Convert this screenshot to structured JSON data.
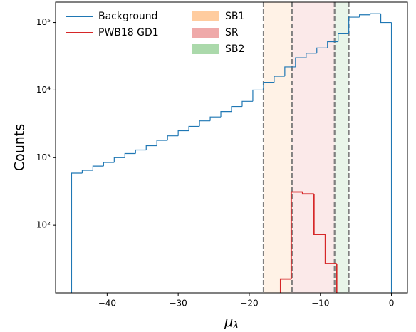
{
  "chart_data": {
    "type": "histogram",
    "xlabel": "μ",
    "xlabel_sub": "λ",
    "ylabel": "Counts",
    "xlim": [
      -47.25,
      2.25
    ],
    "ylim": [
      10,
      200000
    ],
    "log_y": true,
    "xticks": [
      {
        "value": -40,
        "label": "−40"
      },
      {
        "value": -30,
        "label": "−30"
      },
      {
        "value": -20,
        "label": "−20"
      },
      {
        "value": -10,
        "label": "−10"
      },
      0
    ],
    "yticks": [
      {
        "value": 100,
        "label": "10²"
      },
      {
        "value": 1000,
        "label": "10³"
      },
      {
        "value": 10000,
        "label": "10⁴"
      },
      {
        "value": 100000,
        "label": "10⁵"
      }
    ],
    "series": [
      {
        "name": "Background",
        "color": "#1f77b4",
        "bins": [
          -45,
          -43.5,
          -42,
          -40.5,
          -39,
          -37.5,
          -36,
          -34.5,
          -33,
          -31.5,
          -30,
          -28.5,
          -27,
          -25.5,
          -24,
          -22.5,
          -21,
          -19.5,
          -18,
          -16.5,
          -15,
          -13.5,
          -12,
          -10.5,
          -9,
          -7.5,
          -6,
          -4.5,
          -3,
          -1.5,
          0
        ],
        "values": [
          590,
          650,
          750,
          850,
          1000,
          1150,
          1300,
          1500,
          1800,
          2100,
          2500,
          2900,
          3500,
          4000,
          4800,
          5700,
          6800,
          10000,
          13000,
          16000,
          22000,
          30000,
          35000,
          42000,
          52000,
          68000,
          120000,
          130000,
          135000,
          100000
        ]
      },
      {
        "name": "PWB18 GD1",
        "color": "#d62728",
        "bins": [
          -15.6,
          -14.1,
          -12.5,
          -10.9,
          -9.3,
          -7.7
        ],
        "values": [
          16,
          310,
          290,
          73,
          27
        ]
      }
    ],
    "regions": [
      {
        "name": "SB1",
        "color": "#ff7f0e",
        "range": [
          -18,
          -14
        ]
      },
      {
        "name": "SR",
        "color": "#d62728",
        "range": [
          -14,
          -8
        ]
      },
      {
        "name": "SB2",
        "color": "#2ca02c",
        "range": [
          -8,
          -6
        ]
      }
    ],
    "legend": "upper left"
  }
}
